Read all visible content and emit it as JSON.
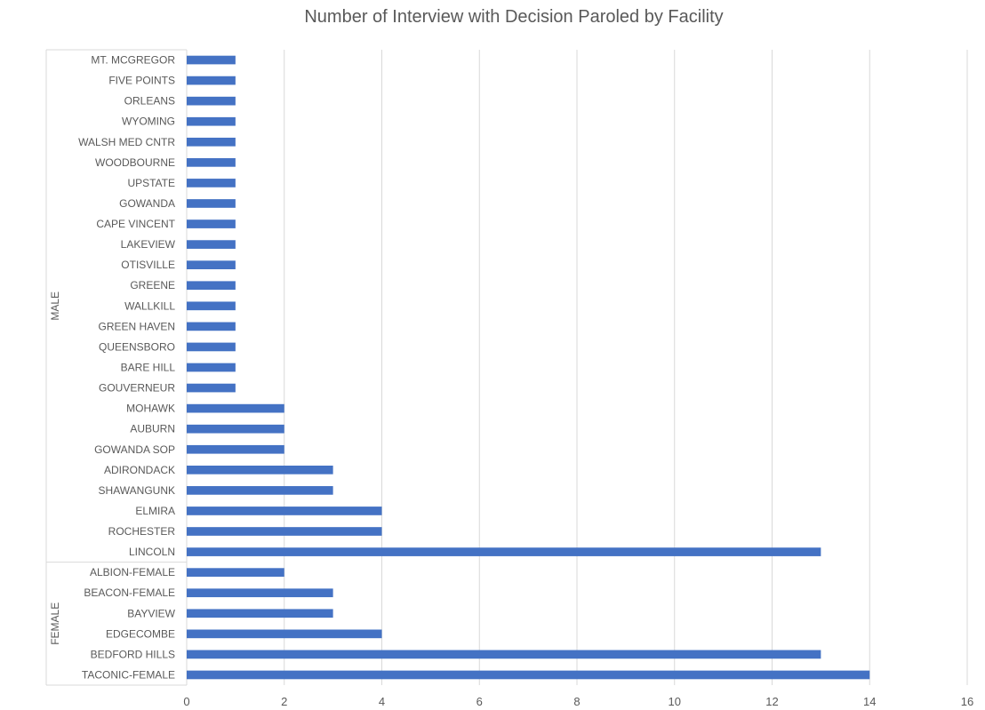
{
  "chart_data": {
    "type": "bar",
    "orientation": "horizontal",
    "title": "Number of Interview with Decision Paroled by Facility",
    "xlabel": "",
    "ylabel": "",
    "xlim": [
      0,
      16
    ],
    "xticks": [
      0,
      2,
      4,
      6,
      8,
      10,
      12,
      14,
      16
    ],
    "grid": true,
    "legend": "none",
    "bar_color": "#4472C4",
    "groups": [
      {
        "name": "MALE",
        "categories": [
          "MT. MCGREGOR",
          "FIVE POINTS",
          "ORLEANS",
          "WYOMING",
          "WALSH MED CNTR",
          "WOODBOURNE",
          "UPSTATE",
          "GOWANDA",
          "CAPE VINCENT",
          "LAKEVIEW",
          "OTISVILLE",
          "GREENE",
          "WALLKILL",
          "GREEN HAVEN",
          "QUEENSBORO",
          "BARE HILL",
          "GOUVERNEUR",
          "MOHAWK",
          "AUBURN",
          "GOWANDA SOP",
          "ADIRONDACK",
          "SHAWANGUNK",
          "ELMIRA",
          "ROCHESTER",
          "LINCOLN"
        ],
        "values": [
          1,
          1,
          1,
          1,
          1,
          1,
          1,
          1,
          1,
          1,
          1,
          1,
          1,
          1,
          1,
          1,
          1,
          2,
          2,
          2,
          3,
          3,
          4,
          4,
          13
        ]
      },
      {
        "name": "FEMALE",
        "categories": [
          "ALBION-FEMALE",
          "BEACON-FEMALE",
          "BAYVIEW",
          "EDGECOMBE",
          "BEDFORD HILLS",
          "TACONIC-FEMALE"
        ],
        "values": [
          2,
          3,
          3,
          4,
          13,
          14
        ]
      }
    ]
  }
}
